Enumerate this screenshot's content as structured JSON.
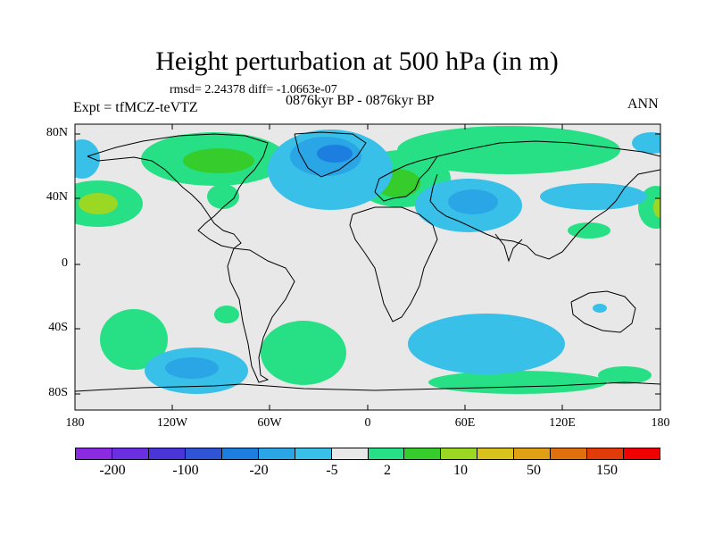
{
  "title": "Height perturbation at 500 hPa (in m)",
  "stats": "rmsd= 2.24378 diff= -1.0663e-07",
  "experiment": "Expt = tfMCZ-teVTZ",
  "period": "0876kyr BP - 0876kyr BP",
  "season": "ANN",
  "lat_labels": [
    "80N",
    "40N",
    "0",
    "40S",
    "80S"
  ],
  "lon_labels": [
    "180",
    "120W",
    "60W",
    "0",
    "60E",
    "120E",
    "180"
  ],
  "colorbar": {
    "colors": [
      "#8a2be2",
      "#6a2fe0",
      "#4a35d8",
      "#2f55d6",
      "#1c7fe0",
      "#2aa6e6",
      "#38c0e8",
      "#e8e8e8",
      "#27e085",
      "#35cc2c",
      "#9ad824",
      "#d8c21b",
      "#e0a014",
      "#e0700e",
      "#e03c0a",
      "#f00000"
    ],
    "labels": [
      "-200",
      "-100",
      "-20",
      "-5",
      "2",
      "10",
      "50",
      "150"
    ]
  },
  "colors": {
    "background_field": "#e8e8e8",
    "coast": "#000000",
    "light_negative": "#38c0e8",
    "medium_negative": "#2aa6e6",
    "strong_negative": "#1c7fe0",
    "light_positive": "#27e085",
    "medium_positive": "#35cc2c",
    "strong_positive": "#9ad824"
  }
}
